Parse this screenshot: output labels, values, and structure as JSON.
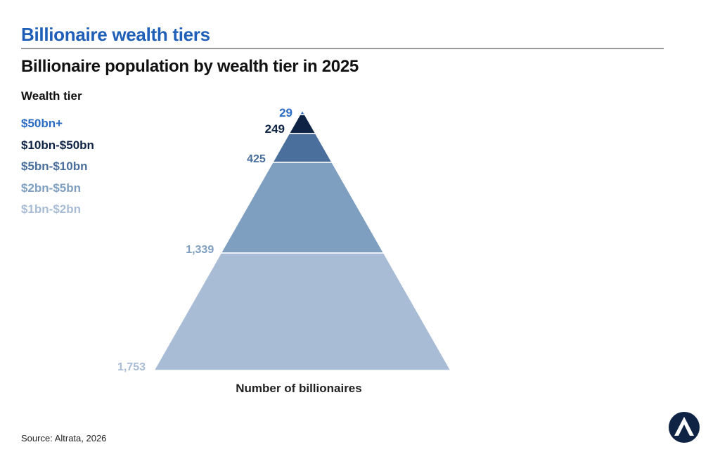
{
  "header": {
    "section_title": "Billionaire wealth tiers",
    "chart_title": "Billionaire population by wealth tier in 2025"
  },
  "legend": {
    "title": "Wealth tier"
  },
  "chart_data": {
    "type": "pyramid",
    "title": "Billionaire population by wealth tier in 2025",
    "xlabel": "Number of billionaires",
    "legend_title": "Wealth tier",
    "legend_position": "top-left",
    "tiers": [
      {
        "name": "$50bn+",
        "value": 29,
        "label": "29",
        "color": "#2b6cc4"
      },
      {
        "name": "$10bn-$50bn",
        "value": 249,
        "label": "249",
        "color": "#0f2445"
      },
      {
        "name": "$5bn-$10bn",
        "value": 425,
        "label": "425",
        "color": "#4a6f9c"
      },
      {
        "name": "$2bn-$5bn",
        "value": 1339,
        "label": "1,339",
        "color": "#7f9fc1"
      },
      {
        "name": "$1bn-$2bn",
        "value": 1753,
        "label": "1,753",
        "color": "#a9bcd6"
      }
    ]
  },
  "footer": {
    "source": "Source: Altrata, 2026"
  },
  "logo": {
    "icon": "altrata-logo",
    "color": "#0f2445"
  }
}
